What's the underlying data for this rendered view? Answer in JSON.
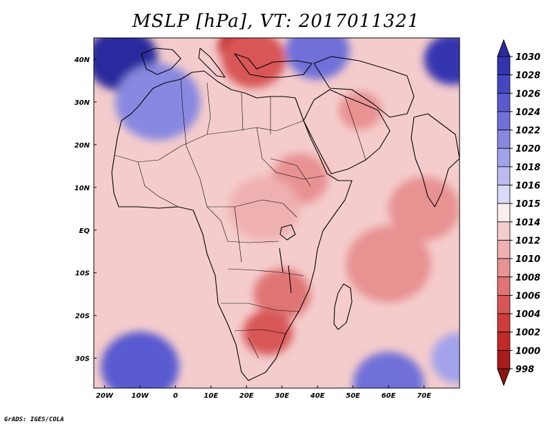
{
  "title": "MSLP [hPa], VT: 2017011321",
  "credit": "GrADS: IGES/COLA",
  "map": {
    "lon_range": [
      -23,
      80
    ],
    "lat_range": [
      -37,
      45
    ],
    "x_ticks": [
      {
        "value": -20,
        "label": "20W"
      },
      {
        "value": -10,
        "label": "10W"
      },
      {
        "value": 0,
        "label": "0"
      },
      {
        "value": 10,
        "label": "10E"
      },
      {
        "value": 20,
        "label": "20E"
      },
      {
        "value": 30,
        "label": "30E"
      },
      {
        "value": 40,
        "label": "40E"
      },
      {
        "value": 50,
        "label": "50E"
      },
      {
        "value": 60,
        "label": "60E"
      },
      {
        "value": 70,
        "label": "70E"
      }
    ],
    "y_ticks": [
      {
        "value": 40,
        "label": "40N"
      },
      {
        "value": 30,
        "label": "30N"
      },
      {
        "value": 20,
        "label": "20N"
      },
      {
        "value": 10,
        "label": "10N"
      },
      {
        "value": 0,
        "label": "EQ"
      },
      {
        "value": -10,
        "label": "10S"
      },
      {
        "value": -20,
        "label": "20S"
      },
      {
        "value": -30,
        "label": "30S"
      }
    ],
    "pressure_centers": [
      {
        "lon": 18,
        "lat": 43,
        "hPa": 1000,
        "r": 6
      },
      {
        "lon": 22,
        "lat": 40,
        "hPa": 1004,
        "r": 9
      },
      {
        "lon": 52,
        "lat": 28,
        "hPa": 1008,
        "r": 6
      },
      {
        "lon": 35,
        "lat": 12,
        "hPa": 1008,
        "r": 8
      },
      {
        "lon": 25,
        "lat": 5,
        "hPa": 1010,
        "r": 10
      },
      {
        "lon": 30,
        "lat": -15,
        "hPa": 1007,
        "r": 8
      },
      {
        "lon": 26,
        "lat": -24,
        "hPa": 1005,
        "r": 7
      },
      {
        "lon": 60,
        "lat": -8,
        "hPa": 1008,
        "r": 12
      },
      {
        "lon": 70,
        "lat": 5,
        "hPa": 1009,
        "r": 10
      },
      {
        "lon": 0,
        "lat": 5,
        "hPa": 1012,
        "r": 14
      },
      {
        "lon": -15,
        "lat": 40,
        "hPa": 1030,
        "r": 10
      },
      {
        "lon": -5,
        "lat": 30,
        "hPa": 1020,
        "r": 12
      },
      {
        "lon": 40,
        "lat": 42,
        "hPa": 1022,
        "r": 9
      },
      {
        "lon": 78,
        "lat": 40,
        "hPa": 1028,
        "r": 8
      },
      {
        "lon": -10,
        "lat": -32,
        "hPa": 1024,
        "r": 11
      },
      {
        "lon": 60,
        "lat": -36,
        "hPa": 1022,
        "r": 10
      },
      {
        "lon": 80,
        "lat": -30,
        "hPa": 1018,
        "r": 8
      }
    ]
  },
  "colorbar": {
    "levels": [
      "1030",
      "1028",
      "1026",
      "1024",
      "1022",
      "1020",
      "1018",
      "1016",
      "1015",
      "1014",
      "1012",
      "1010",
      "1008",
      "1006",
      "1004",
      "1002",
      "1000",
      "998"
    ],
    "colors": [
      "#2a2a9e",
      "#3434b0",
      "#4646c4",
      "#5a5ad0",
      "#7070d8",
      "#8888e0",
      "#a2a2ea",
      "#bcbcf2",
      "#dadaf8",
      "#fbeeee",
      "#f5cccc",
      "#efb0b0",
      "#e89292",
      "#e07474",
      "#d85656",
      "#cf3c3c",
      "#c22a2a",
      "#a81c1c",
      "#8e1212"
    ]
  }
}
